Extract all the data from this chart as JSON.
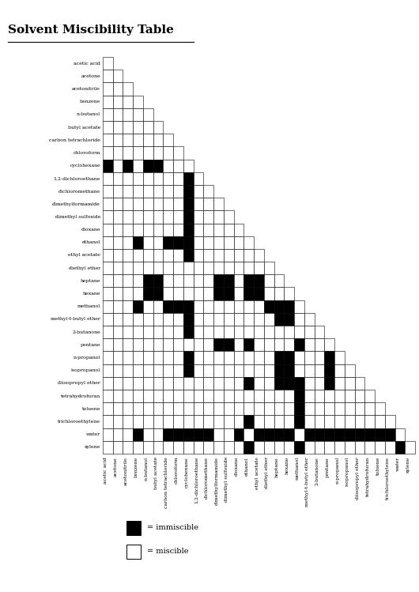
{
  "title": "Solvent Miscibility Table",
  "solvents": [
    "acetic acid",
    "acetone",
    "acetonitrile",
    "benzene",
    "n-butanol",
    "butyl acetate",
    "carbon tetrachloride",
    "chloroform",
    "cyclohexane",
    "1,2-dichloroethane",
    "dichloromethane",
    "dimethylformamide",
    "dimethyl sulfoxide",
    "dioxane",
    "ethanol",
    "ethyl acetate",
    "diethyl ether",
    "heptane",
    "hexane",
    "methanol",
    "methyl-t-butyl ether",
    "2-butanone",
    "pentane",
    "n-propanol",
    "isopropanol",
    "diisopropyl ether",
    "tetrahydrofuran",
    "toluene",
    "trichloroethylene",
    "water",
    "xylene"
  ],
  "immiscible_pairs": [
    [
      0,
      8
    ],
    [
      2,
      8
    ],
    [
      3,
      14
    ],
    [
      3,
      19
    ],
    [
      3,
      29
    ],
    [
      4,
      8
    ],
    [
      4,
      17
    ],
    [
      4,
      18
    ],
    [
      5,
      8
    ],
    [
      5,
      17
    ],
    [
      5,
      18
    ],
    [
      6,
      14
    ],
    [
      6,
      19
    ],
    [
      6,
      29
    ],
    [
      7,
      14
    ],
    [
      7,
      19
    ],
    [
      7,
      29
    ],
    [
      8,
      9
    ],
    [
      8,
      10
    ],
    [
      8,
      11
    ],
    [
      8,
      12
    ],
    [
      8,
      13
    ],
    [
      8,
      14
    ],
    [
      8,
      15
    ],
    [
      8,
      19
    ],
    [
      8,
      20
    ],
    [
      8,
      21
    ],
    [
      8,
      23
    ],
    [
      8,
      24
    ],
    [
      8,
      29
    ],
    [
      9,
      29
    ],
    [
      10,
      29
    ],
    [
      11,
      17
    ],
    [
      11,
      18
    ],
    [
      11,
      22
    ],
    [
      12,
      17
    ],
    [
      12,
      18
    ],
    [
      12,
      22
    ],
    [
      13,
      29
    ],
    [
      14,
      17
    ],
    [
      14,
      18
    ],
    [
      14,
      22
    ],
    [
      14,
      25
    ],
    [
      14,
      28
    ],
    [
      14,
      30
    ],
    [
      15,
      17
    ],
    [
      15,
      18
    ],
    [
      15,
      29
    ],
    [
      16,
      19
    ],
    [
      16,
      29
    ],
    [
      17,
      19
    ],
    [
      17,
      20
    ],
    [
      17,
      23
    ],
    [
      17,
      24
    ],
    [
      17,
      25
    ],
    [
      17,
      29
    ],
    [
      18,
      19
    ],
    [
      18,
      20
    ],
    [
      18,
      23
    ],
    [
      18,
      24
    ],
    [
      18,
      25
    ],
    [
      18,
      29
    ],
    [
      19,
      22
    ],
    [
      19,
      25
    ],
    [
      19,
      26
    ],
    [
      19,
      27
    ],
    [
      19,
      28
    ],
    [
      19,
      30
    ],
    [
      20,
      29
    ],
    [
      21,
      29
    ],
    [
      22,
      23
    ],
    [
      22,
      24
    ],
    [
      22,
      25
    ],
    [
      22,
      29
    ],
    [
      23,
      29
    ],
    [
      24,
      29
    ],
    [
      25,
      29
    ],
    [
      26,
      29
    ],
    [
      27,
      29
    ],
    [
      28,
      29
    ],
    [
      29,
      30
    ]
  ],
  "background_color": "#ffffff",
  "immiscible_color": "#000000",
  "miscible_color": "#ffffff",
  "grid_color": "#000000",
  "title_fontsize": 11,
  "label_fontsize": 4.5,
  "legend_fontsize": 7
}
